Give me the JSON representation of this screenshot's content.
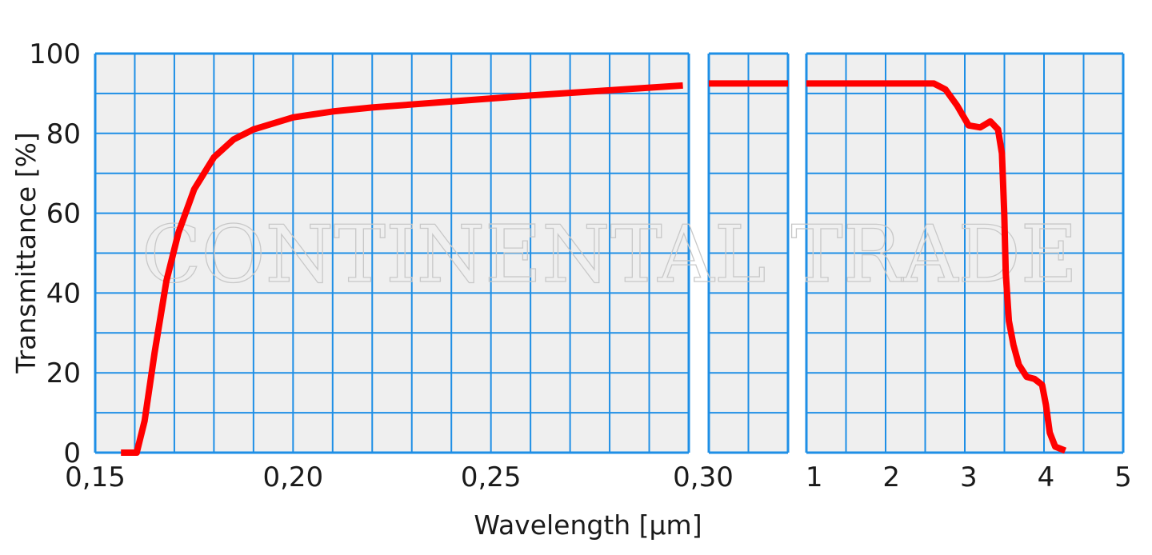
{
  "chart_data": {
    "type": "line",
    "xlabel": "Wavelength [µm]",
    "ylabel": "Transmittance  [%]",
    "watermark": "CONTINENTAL TRADE",
    "ylim": [
      0,
      100
    ],
    "y_ticks": [
      "0",
      "20",
      "40",
      "60",
      "80",
      "100"
    ],
    "grid": true,
    "colors": {
      "curve": "#ff0000",
      "grid": "#1e8fe6",
      "plot_bg": "#efefef"
    },
    "panels": [
      {
        "name": "uv",
        "xlim": [
          0.15,
          0.3
        ],
        "x_ticks": [
          {
            "value": 0.15,
            "label": "0,15"
          },
          {
            "value": 0.2,
            "label": "0,20"
          },
          {
            "value": 0.25,
            "label": "0,25"
          },
          {
            "value": 0.3,
            "label": "0,30"
          }
        ],
        "points": [
          [
            0.1565,
            0
          ],
          [
            0.1605,
            0
          ],
          [
            0.1625,
            8
          ],
          [
            0.165,
            25
          ],
          [
            0.168,
            43
          ],
          [
            0.171,
            55
          ],
          [
            0.175,
            66
          ],
          [
            0.18,
            74
          ],
          [
            0.185,
            78.5
          ],
          [
            0.19,
            81
          ],
          [
            0.2,
            84
          ],
          [
            0.21,
            85.5
          ],
          [
            0.22,
            86.5
          ],
          [
            0.24,
            88
          ],
          [
            0.26,
            89.5
          ],
          [
            0.28,
            90.8
          ],
          [
            0.2985,
            92
          ]
        ]
      },
      {
        "name": "bridge",
        "xlim": [
          0.3,
          0.55
        ],
        "x_ticks": [],
        "points": [
          [
            0.3,
            92.5
          ],
          [
            0.55,
            92.5
          ]
        ]
      },
      {
        "name": "ir",
        "xlim": [
          0.9,
          5
        ],
        "x_ticks": [
          {
            "value": 1,
            "label": "1"
          },
          {
            "value": 2,
            "label": "2"
          },
          {
            "value": 3,
            "label": "3"
          },
          {
            "value": 4,
            "label": "4"
          },
          {
            "value": 5,
            "label": "5"
          }
        ],
        "points": [
          [
            0.9,
            92.5
          ],
          [
            2.0,
            92.5
          ],
          [
            2.55,
            92.5
          ],
          [
            2.7,
            91
          ],
          [
            2.85,
            87
          ],
          [
            3.0,
            82
          ],
          [
            3.15,
            81.5
          ],
          [
            3.28,
            83
          ],
          [
            3.38,
            81
          ],
          [
            3.43,
            75
          ],
          [
            3.46,
            60
          ],
          [
            3.48,
            45
          ],
          [
            3.52,
            33
          ],
          [
            3.58,
            27
          ],
          [
            3.65,
            22
          ],
          [
            3.75,
            19
          ],
          [
            3.85,
            18.5
          ],
          [
            3.95,
            17
          ],
          [
            4.0,
            12
          ],
          [
            4.05,
            5
          ],
          [
            4.12,
            1.5
          ],
          [
            4.25,
            0.5
          ]
        ]
      }
    ]
  }
}
